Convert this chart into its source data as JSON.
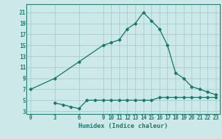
{
  "upper_x": [
    0,
    3,
    6,
    9,
    10,
    11,
    12,
    13,
    14,
    15,
    16,
    17,
    18,
    19,
    20,
    21,
    22,
    23
  ],
  "upper_y": [
    7,
    9,
    12,
    15,
    15.5,
    16,
    18,
    19,
    21,
    19.5,
    18,
    15,
    10,
    9,
    7.5,
    7,
    6.5,
    6
  ],
  "lower_x": [
    3,
    4,
    5,
    6,
    7,
    8,
    9,
    10,
    11,
    12,
    13,
    14,
    15,
    16,
    17,
    18,
    19,
    20,
    21,
    22,
    23
  ],
  "lower_y": [
    4.5,
    4.2,
    3.8,
    3.5,
    5.0,
    5.0,
    5.0,
    5.0,
    5.0,
    5.0,
    5.0,
    5.0,
    5.0,
    5.5,
    5.5,
    5.5,
    5.5,
    5.5,
    5.5,
    5.5,
    5.5
  ],
  "line_color": "#1a7a6e",
  "bg_color": "#cce8e8",
  "grid_color": "#aacece",
  "xlabel": "Humidex (Indice chaleur)",
  "xlim": [
    -0.5,
    23.5
  ],
  "ylim": [
    2.5,
    22.5
  ],
  "xticks": [
    0,
    3,
    6,
    9,
    10,
    11,
    12,
    13,
    14,
    15,
    16,
    17,
    18,
    19,
    20,
    21,
    22,
    23
  ],
  "yticks": [
    3,
    5,
    7,
    9,
    11,
    13,
    15,
    17,
    19,
    21
  ]
}
